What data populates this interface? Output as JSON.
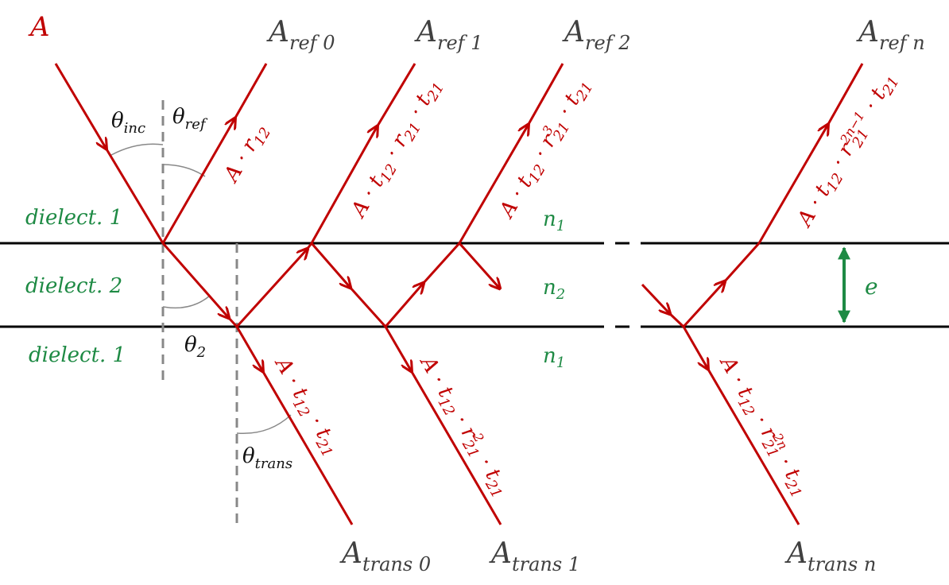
{
  "colors": {
    "ray": "#c00000",
    "interface": "#000000",
    "medium_label": "#1e8a44",
    "normal": "#888888",
    "amplitude_label": "#404040"
  },
  "incident": {
    "label": "A"
  },
  "reflected": [
    {
      "base": "A",
      "sub": "ref 0"
    },
    {
      "base": "A",
      "sub": "ref 1"
    },
    {
      "base": "A",
      "sub": "ref 2"
    },
    {
      "base": "A",
      "sub": "ref n"
    }
  ],
  "transmitted": [
    {
      "base": "A",
      "sub": "trans 0"
    },
    {
      "base": "A",
      "sub": "trans 1"
    },
    {
      "base": "A",
      "sub": "trans n"
    }
  ],
  "angles": {
    "inc": {
      "base": "θ",
      "sub": "inc"
    },
    "ref": {
      "base": "θ",
      "sub": "ref"
    },
    "two": {
      "base": "θ",
      "sub": "2"
    },
    "trans": {
      "base": "θ",
      "sub": "trans"
    }
  },
  "media": {
    "top": "dielect. 1",
    "middle": "dielect. 2",
    "bottom": "dielect. 1",
    "n_top": {
      "base": "n",
      "sub": "1"
    },
    "n_mid": {
      "base": "n",
      "sub": "2"
    },
    "n_bot": {
      "base": "n",
      "sub": "1"
    }
  },
  "thickness": "e",
  "ray_labels": {
    "ref0": "A · r",
    "ref0_sub": "12",
    "common_t": "t",
    "t12": "12",
    "t21": "21",
    "r": "r",
    "r21": "21",
    "dot": " · ",
    "ref2_exp": "3",
    "refn_exp": "2n−1",
    "trans1_exp": "2",
    "transn_exp": "2n",
    "A": "A"
  }
}
